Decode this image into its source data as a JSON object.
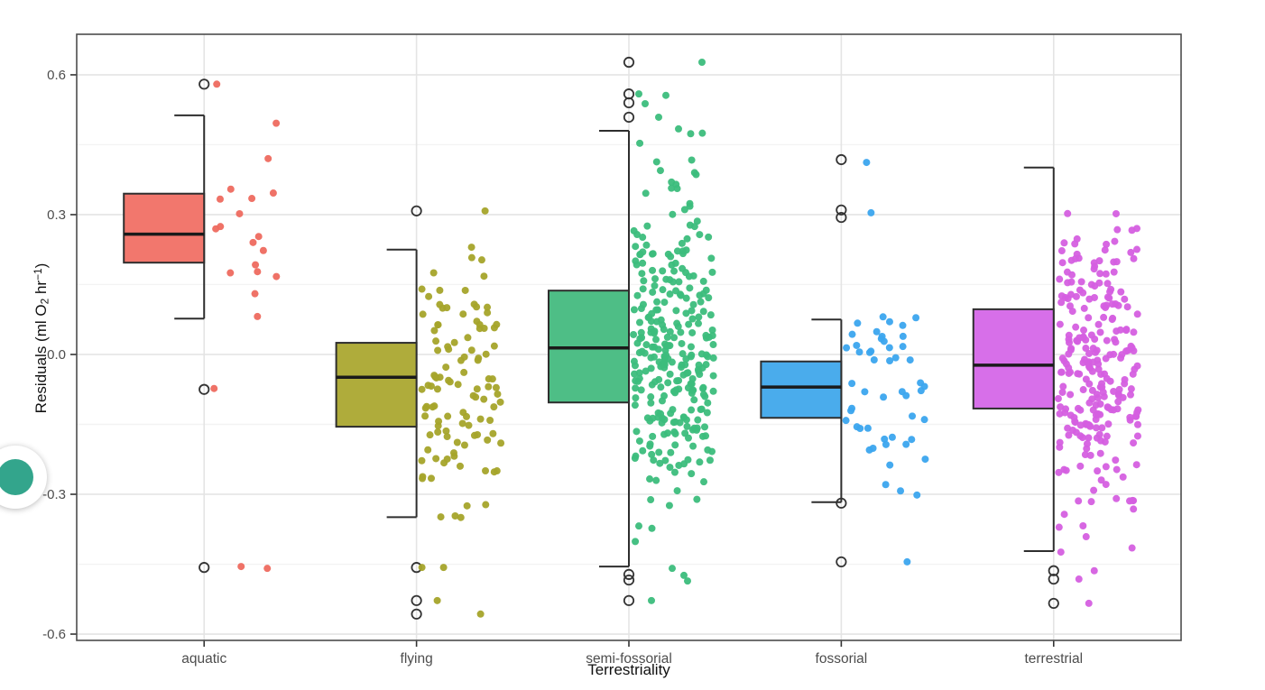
{
  "page": {
    "background": "#ffffff"
  },
  "floating_button": {
    "dot_color": "#33A58C"
  },
  "chart_data": {
    "type": "boxplot_jitter",
    "title": "",
    "xlabel": "Terrestriality",
    "ylabel_plain": "Residuals (ml O2 hr-1)",
    "ylabel_segments": [
      {
        "t": "Residuals (ml O"
      },
      {
        "t": "2",
        "style": "sub"
      },
      {
        "t": " hr"
      },
      {
        "t": "−1",
        "style": "sup"
      },
      {
        "t": ")"
      }
    ],
    "y_ticks": [
      0.6,
      0.3,
      0.0,
      -0.3,
      -0.6
    ],
    "y_tick_labels": [
      "0.6",
      "0.3",
      "0.0",
      "-0.3",
      "-0.6"
    ],
    "y_minor_ticks": [
      0.45,
      0.15,
      -0.15,
      -0.45
    ],
    "ylim": [
      -0.6135,
      0.687
    ],
    "grid": {
      "major_color": "#E4E4E4",
      "minor_color": "#F3F3F3"
    },
    "panel": {
      "background": "#FFFFFF",
      "border_color": "#4D4D4D"
    },
    "box_style": {
      "border_color": "#2E2E2E",
      "median_color": "#1A1A1A",
      "outlier_stroke": "#333333"
    },
    "legend": "none",
    "categories": [
      {
        "label": "aquatic",
        "box_fill": "#F2776D",
        "point_color": "#EE6A5F",
        "box": {
          "whisker_low": 0.077,
          "q1": 0.197,
          "median": 0.258,
          "q3": 0.345,
          "whisker_high": 0.513
        },
        "outliers": [
          0.58,
          -0.075,
          -0.457
        ],
        "extra_points": [
          [
            14,
            0.58
          ],
          [
            11,
            -0.073
          ],
          [
            41,
            -0.455
          ],
          [
            70,
            -0.459
          ]
        ],
        "jitter": {
          "n": 18,
          "mean": 0.28,
          "sd": 0.09,
          "min": 0.08,
          "max": 0.52,
          "seed": 11
        }
      },
      {
        "label": "flying",
        "box_fill": "#AFAC3B",
        "point_color": "#A5A42A",
        "box": {
          "whisker_low": -0.349,
          "q1": -0.155,
          "median": -0.049,
          "q3": 0.025,
          "whisker_high": 0.225
        },
        "outliers": [
          0.308,
          -0.457,
          -0.528,
          -0.557
        ],
        "extra_points": [
          [
            76,
            0.308
          ],
          [
            6,
            -0.457
          ],
          [
            30,
            -0.457
          ],
          [
            23,
            -0.528
          ],
          [
            71,
            -0.557
          ]
        ],
        "jitter": {
          "n": 108,
          "mean": -0.06,
          "sd": 0.135,
          "min": -0.36,
          "max": 0.235,
          "seed": 23
        }
      },
      {
        "label": "semi-fossorial",
        "box_fill": "#4EBE86",
        "point_color": "#3CBD7C",
        "box": {
          "whisker_low": -0.455,
          "q1": -0.103,
          "median": 0.014,
          "q3": 0.137,
          "whisker_high": 0.48
        },
        "outliers": [
          0.627,
          0.559,
          0.54,
          0.509,
          -0.472,
          -0.484,
          -0.528
        ],
        "extra_points": [
          [
            81,
            0.627
          ],
          [
            11,
            0.559
          ],
          [
            41,
            0.556
          ],
          [
            18,
            0.538
          ],
          [
            33,
            0.509
          ],
          [
            55,
            0.484
          ],
          [
            11,
            -0.368
          ],
          [
            25,
            -0.528
          ],
          [
            48,
            -0.459
          ],
          [
            61,
            -0.474
          ],
          [
            65,
            -0.486
          ]
        ],
        "jitter": {
          "n": 290,
          "mean": 0.005,
          "sd": 0.17,
          "min": -0.455,
          "max": 0.485,
          "seed": 37
        }
      },
      {
        "label": "fossorial",
        "box_fill": "#4AACEC",
        "point_color": "#3BA5EE",
        "box": {
          "whisker_low": -0.317,
          "q1": -0.136,
          "median": -0.07,
          "q3": -0.015,
          "whisker_high": 0.075
        },
        "outliers": [
          0.418,
          0.31,
          0.294,
          -0.319,
          -0.445
        ],
        "extra_points": [
          [
            28,
            0.412
          ],
          [
            33,
            0.304
          ],
          [
            73,
            -0.445
          ]
        ],
        "jitter": {
          "n": 50,
          "mean": -0.055,
          "sd": 0.125,
          "min": -0.325,
          "max": 0.085,
          "seed": 51
        }
      },
      {
        "label": "terrestrial",
        "box_fill": "#D76FE9",
        "point_color": "#D55FE0",
        "box": {
          "whisker_low": -0.422,
          "q1": -0.116,
          "median": -0.023,
          "q3": 0.097,
          "whisker_high": 0.401
        },
        "outliers": [
          -0.464,
          -0.482,
          -0.534
        ],
        "extra_points": [
          [
            8,
            -0.424
          ],
          [
            36,
            -0.391
          ],
          [
            45,
            -0.464
          ],
          [
            28,
            -0.482
          ],
          [
            39,
            -0.534
          ]
        ],
        "jitter": {
          "n": 250,
          "mean": -0.025,
          "sd": 0.16,
          "min": -0.425,
          "max": 0.405,
          "seed": 77
        }
      }
    ]
  }
}
